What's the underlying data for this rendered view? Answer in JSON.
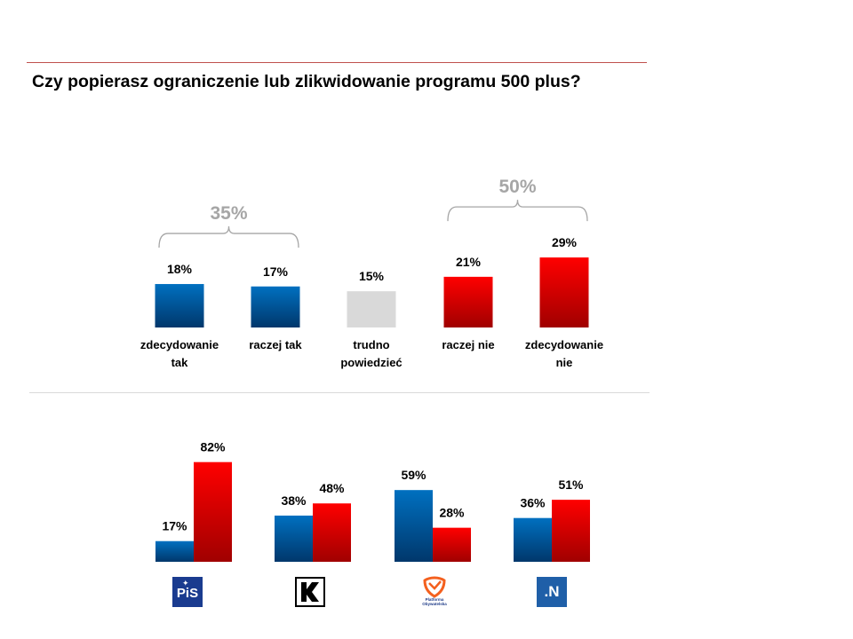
{
  "title": "Czy popierasz ograniczenie lub zlikwidowanie programu 500 plus?",
  "colors": {
    "blue": "#0070c0",
    "blue_dark": "#00376b",
    "red": "#ff0000",
    "red_dark": "#a00000",
    "grey": "#d9d9d9",
    "group_label": "#a6a6a6",
    "top_rule": "#c0504d"
  },
  "chart_data": [
    {
      "type": "bar",
      "title": "Czy popierasz ograniczenie lub zlikwidowanie programu 500 plus?",
      "categories": [
        [
          "zdecydowanie",
          "tak"
        ],
        [
          "raczej tak"
        ],
        [
          "trudno",
          "powiedzieć"
        ],
        [
          "raczej nie"
        ],
        [
          "zdecydowanie",
          "nie"
        ]
      ],
      "values": [
        18,
        17,
        15,
        21,
        29
      ],
      "value_labels": [
        "18%",
        "17%",
        "15%",
        "21%",
        "29%"
      ],
      "bar_colors": [
        "blue",
        "blue",
        "grey",
        "red",
        "red"
      ],
      "groups": [
        {
          "label": "35%",
          "value": 35,
          "span": [
            0,
            1
          ]
        },
        {
          "label": "50%",
          "value": 50,
          "span": [
            3,
            4
          ]
        }
      ]
    },
    {
      "type": "bar",
      "categories": [
        "PiS",
        "Kukiz'15",
        "Platforma Obywatelska",
        ".N"
      ],
      "series": [
        {
          "color": "blue",
          "values": [
            17,
            38,
            59,
            36
          ],
          "value_labels": [
            "17%",
            "38%",
            "59%",
            "36%"
          ]
        },
        {
          "color": "red",
          "values": [
            82,
            48,
            28,
            51
          ],
          "value_labels": [
            "82%",
            "48%",
            "28%",
            "51%"
          ]
        }
      ]
    }
  ],
  "logos": {
    "pis": {
      "icon": "pis-logo",
      "text": "PiS"
    },
    "k15": {
      "icon": "kukiz15-logo"
    },
    "po": {
      "icon": "platforma-obywatelska-logo",
      "text_lines": [
        "Platforma",
        "Obywatelska"
      ]
    },
    "n": {
      "icon": "nowoczesna-logo",
      "text": ".N"
    }
  }
}
